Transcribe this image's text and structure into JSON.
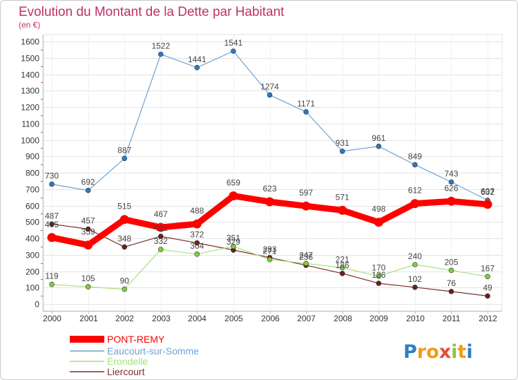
{
  "chart_data": {
    "type": "line",
    "title": "Evolution du Montant de la Dette par Habitant",
    "subtitle": "(en €)",
    "xlabel": "",
    "ylabel": "",
    "x": [
      "2000",
      "2001",
      "2002",
      "2003",
      "2004",
      "2005",
      "2006",
      "2007",
      "2008",
      "2009",
      "2010",
      "2011",
      "2012"
    ],
    "ylim": [
      0,
      1600
    ],
    "yticks": [
      0,
      100,
      200,
      300,
      400,
      500,
      600,
      700,
      800,
      900,
      1000,
      1100,
      1200,
      1300,
      1400,
      1500,
      1600
    ],
    "grid": true,
    "legend": "bottom-left",
    "series": [
      {
        "name": "PONT-REMY",
        "color": "#ff0000",
        "marker_color": "#ff0000",
        "values": [
          405,
          359,
          515,
          467,
          488,
          659,
          623,
          597,
          571,
          498,
          612,
          626,
          607
        ]
      },
      {
        "name": "Eaucourt-sur-Somme",
        "color": "#6aa3d6",
        "marker_color": "#2f78c0",
        "values": [
          730,
          692,
          887,
          1522,
          1441,
          1541,
          1274,
          1171,
          931,
          961,
          849,
          743,
          632
        ]
      },
      {
        "name": "Érondelle",
        "color": "#a6e07c",
        "marker_color": "#7fcc3c",
        "values": [
          119,
          105,
          90,
          332,
          304,
          351,
          271,
          247,
          221,
          170,
          240,
          205,
          167
        ]
      },
      {
        "name": "Liercourt",
        "color": "#7a2c2c",
        "marker_color": "#6a1e1e",
        "values": [
          487,
          457,
          348,
          412,
          372,
          329,
          283,
          236,
          186,
          126,
          102,
          76,
          49
        ]
      }
    ]
  },
  "theme": {
    "title_color": "#c0306a",
    "grid_color": "#e3e3e3",
    "axis_color": "#bdbdbd",
    "minor_tick_color": "#e05050"
  },
  "logo": {
    "text": "Proxiti",
    "letter_colors": [
      "#2f7fc1",
      "#f39c12",
      "#f39c12",
      "#e74c3c",
      "#8bc34a",
      "#f39c12",
      "#2f7fc1"
    ]
  }
}
